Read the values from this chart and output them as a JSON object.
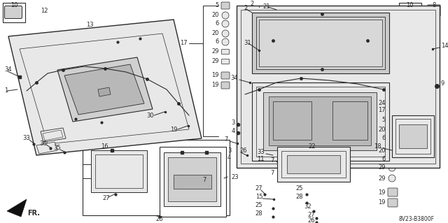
{
  "background_color": "#ffffff",
  "diagram_code": "8V23-B3800F",
  "fig_width": 6.4,
  "fig_height": 3.19,
  "dpi": 100,
  "line_color": "#2a2a2a",
  "fill_light": "#e8e8e8",
  "fill_mid": "#d0d0d0",
  "fill_dark": "#b8b8b8"
}
